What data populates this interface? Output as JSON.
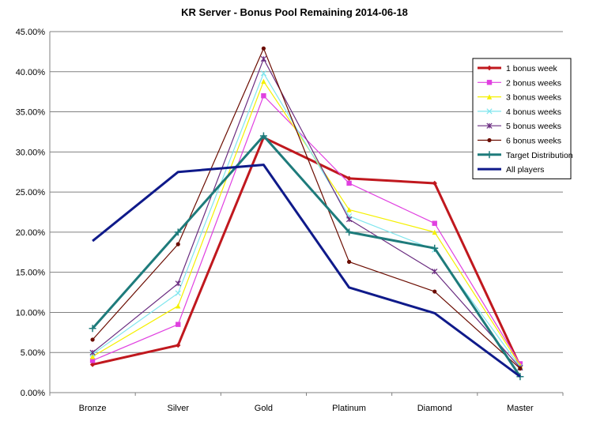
{
  "chart_data": {
    "type": "line",
    "title": "KR Server - Bonus Pool Remaining 2014-06-18",
    "xlabel": "",
    "ylabel": "",
    "categories": [
      "Bronze",
      "Silver",
      "Gold",
      "Platinum",
      "Diamond",
      "Master"
    ],
    "ylim": [
      0,
      45
    ],
    "yticks": [
      0,
      5,
      10,
      15,
      20,
      25,
      30,
      35,
      40,
      45
    ],
    "ytick_labels": [
      "0.00%",
      "5.00%",
      "10.00%",
      "15.00%",
      "20.00%",
      "25.00%",
      "30.00%",
      "35.00%",
      "40.00%",
      "45.00%"
    ],
    "grid": "horizontal",
    "legend": "top-right",
    "series": [
      {
        "name": "1 bonus week",
        "color": "#c0181e",
        "marker": "diamond",
        "width": 3,
        "values": [
          3.5,
          5.9,
          31.8,
          26.7,
          26.1,
          3.3
        ]
      },
      {
        "name": "2 bonus weeks",
        "color": "#e040e0",
        "marker": "square",
        "width": 1.2,
        "values": [
          4.0,
          8.5,
          37.0,
          26.1,
          21.1,
          3.6
        ]
      },
      {
        "name": "3 bonus weeks",
        "color": "#f5f000",
        "marker": "triangle",
        "width": 1.2,
        "values": [
          4.5,
          10.8,
          38.8,
          22.8,
          20.0,
          3.4
        ]
      },
      {
        "name": "4 bonus weeks",
        "color": "#7fe6ee",
        "marker": "x",
        "width": 1.2,
        "values": [
          4.8,
          12.4,
          39.8,
          22.0,
          17.8,
          3.2
        ]
      },
      {
        "name": "5 bonus weeks",
        "color": "#6a2c80",
        "marker": "star",
        "width": 1.2,
        "values": [
          5.0,
          13.6,
          41.6,
          21.6,
          15.1,
          3.1
        ]
      },
      {
        "name": "6 bonus weeks",
        "color": "#6b0c00",
        "marker": "circle",
        "width": 1.2,
        "values": [
          6.6,
          18.5,
          42.9,
          16.3,
          12.6,
          3.0
        ]
      },
      {
        "name": "Target Distribution",
        "color": "#1e7b7b",
        "marker": "plus",
        "width": 3,
        "values": [
          8.0,
          20.0,
          32.0,
          20.0,
          18.0,
          2.0
        ]
      },
      {
        "name": "All players",
        "color": "#0f1a8a",
        "marker": "none",
        "width": 3,
        "values": [
          18.9,
          27.5,
          28.4,
          13.1,
          9.9,
          2.0
        ]
      }
    ]
  }
}
